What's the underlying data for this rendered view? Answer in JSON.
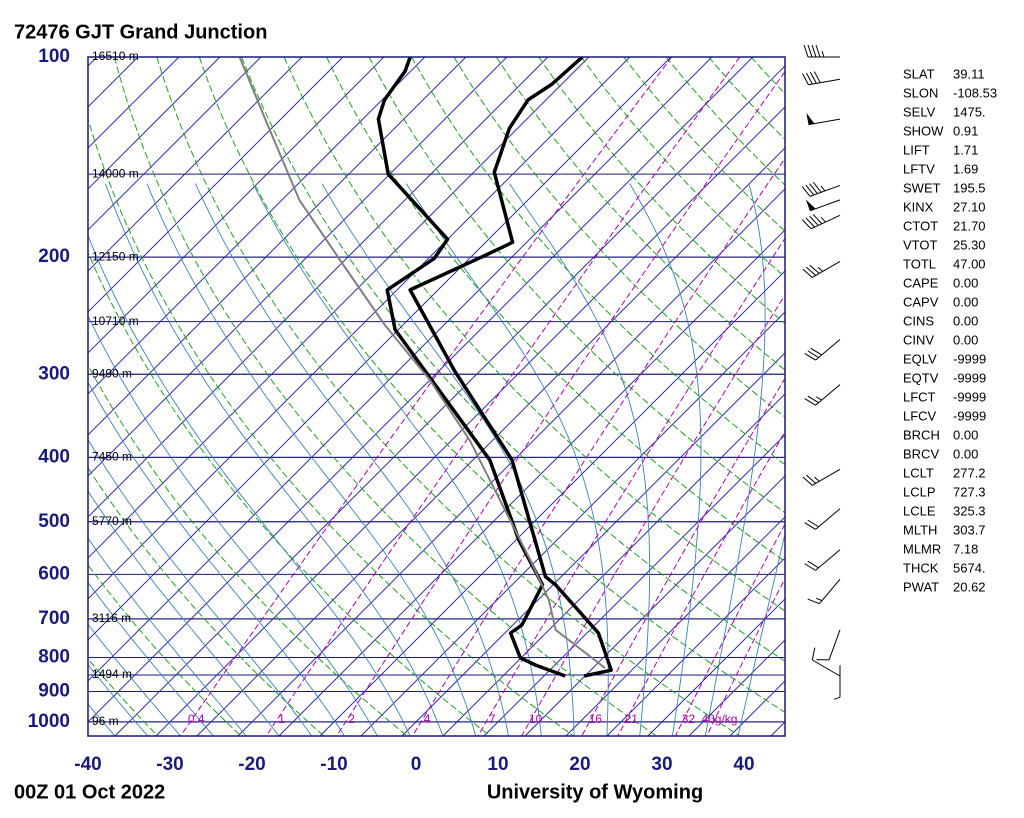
{
  "chart_data": {
    "type": "skewt",
    "title": "72476 GJT Grand Junction",
    "date": "00Z 01 Oct 2022",
    "source": "University of Wyoming",
    "log_y": true,
    "ylim": [
      100,
      1050
    ],
    "yticks": [
      100,
      200,
      300,
      400,
      500,
      600,
      700,
      800,
      900,
      1000
    ],
    "xlim": [
      -40,
      45
    ],
    "xticks": [
      -40,
      -30,
      -20,
      -10,
      0,
      10,
      20,
      30,
      40
    ],
    "height_levels": [
      100,
      150,
      200,
      250,
      300,
      400,
      500,
      700,
      850,
      1000
    ],
    "heights": [
      {
        "value": 16510,
        "label": "16510 m"
      },
      {
        "value": 14000,
        "label": "14000 m"
      },
      {
        "value": 12150,
        "label": "12150 m"
      },
      {
        "value": 10710,
        "label": "10710 m"
      },
      {
        "value": 9490,
        "label": "9490 m"
      },
      {
        "value": 7450,
        "label": "7450 m"
      },
      {
        "value": 5770,
        "label": "5770 m"
      },
      {
        "value": 3116,
        "label": "3116 m"
      },
      {
        "value": 1494,
        "label": "1494 m"
      },
      {
        "value": 96,
        "label": "96 m"
      }
    ],
    "mixing_ratios": [
      0.4,
      1,
      2,
      4,
      7,
      10,
      16,
      21,
      32,
      {
        "value": 40,
        "label": "40g/kg"
      }
    ],
    "series": [
      {
        "color": "#000000",
        "pressure": [
          853,
          836,
          735,
          622,
          605,
          404,
          296,
          224,
          199,
          190,
          149,
          128,
          116,
          110,
          100
        ],
        "values": [
          14.9,
          17.5,
          11.4,
          0.3,
          -1.9,
          -20.2,
          -38.2,
          -53.4,
          -48.5,
          -46.7,
          -57.5,
          -61.0,
          -62.2,
          -61.2,
          -60.8
        ]
      },
      {
        "color": "#000000",
        "pressure": [
          853,
          821,
          801,
          735,
          715,
          622,
          532,
          404,
          257,
          224,
          201,
          188,
          150,
          124,
          116,
          105,
          100
        ],
        "values": [
          12.6,
          7.6,
          4.9,
          0.7,
          1.1,
          -1.3,
          -9.7,
          -22.9,
          -50.4,
          -56.2,
          -54.3,
          -55.0,
          -70.2,
          -78.1,
          -79.7,
          -80.7,
          -81.8
        ]
      },
      {
        "color": "#808080",
        "pressure": [
          830,
          727,
          655,
          571,
          464,
          377,
          306,
          253,
          202,
          164,
          124,
          100
        ],
        "values": [
          16.5,
          5.8,
          1.3,
          -5.8,
          -16.8,
          -27.8,
          -40.0,
          -52.2,
          -65.6,
          -77.9,
          -91.9,
          -102.6
        ]
      }
    ],
    "winds": {
      "pressure": [
        100,
        108,
        124,
        156,
        164,
        173,
        203,
        266,
        311,
        417,
        478,
        551,
        610,
        727,
        822,
        853
      ],
      "direction": [
        270,
        260,
        260,
        250,
        250,
        245,
        240,
        230,
        230,
        240,
        230,
        230,
        220,
        200,
        180,
        300
      ],
      "speed": [
        45,
        40,
        50,
        45,
        50,
        45,
        35,
        30,
        25,
        25,
        20,
        20,
        15,
        10,
        5,
        10
      ]
    },
    "indices": [
      [
        "SLAT",
        "39.11"
      ],
      [
        "SLON",
        "-108.53"
      ],
      [
        "SELV",
        "1475."
      ],
      [
        "SHOW",
        "0.91"
      ],
      [
        "LIFT",
        "1.71"
      ],
      [
        "LFTV",
        "1.69"
      ],
      [
        "SWET",
        "195.5"
      ],
      [
        "KINX",
        "27.10"
      ],
      [
        "CTOT",
        "21.70"
      ],
      [
        "VTOT",
        "25.30"
      ],
      [
        "TOTL",
        "47.00"
      ],
      [
        "CAPE",
        "0.00"
      ],
      [
        "CAPV",
        "0.00"
      ],
      [
        "CINS",
        "0.00"
      ],
      [
        "CINV",
        "0.00"
      ],
      [
        "EQLV",
        "-9999"
      ],
      [
        "EQTV",
        "-9999"
      ],
      [
        "LFCT",
        "-9999"
      ],
      [
        "LFCV",
        "-9999"
      ],
      [
        "BRCH",
        "0.00"
      ],
      [
        "BRCV",
        "0.00"
      ],
      [
        "LCLT",
        "277.2"
      ],
      [
        "LCLP",
        "727.3"
      ],
      [
        "LCLE",
        "325.3"
      ],
      [
        "MLTH",
        "303.7"
      ],
      [
        "MLMR",
        "7.18"
      ],
      [
        "THCK",
        "5674."
      ],
      [
        "PWAT",
        "20.62"
      ]
    ]
  }
}
